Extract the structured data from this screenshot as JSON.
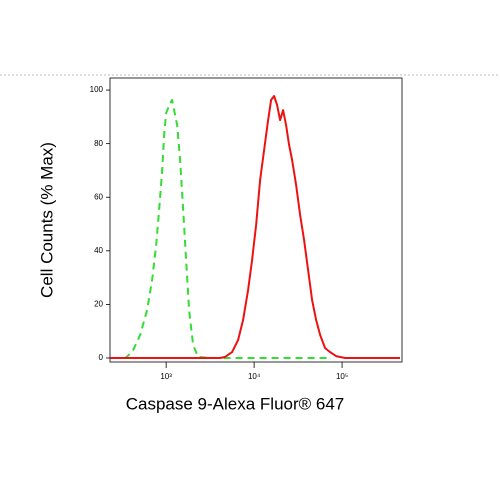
{
  "chart_data": {
    "type": "line",
    "xlabel": "Caspase 9-Alexa Fluor® 647",
    "ylabel": "Cell Counts (% Max)",
    "xscale": "log",
    "xlim": [
      230,
      480000
    ],
    "ylim": [
      -1.5,
      104.5
    ],
    "xticks": [
      {
        "value": 1000,
        "label": "10³"
      },
      {
        "value": 10000,
        "label": "10⁴"
      },
      {
        "value": 100000,
        "label": "10⁵"
      }
    ],
    "yticks": [
      0,
      20,
      40,
      60,
      80,
      100
    ],
    "series": [
      {
        "color": "#33dd33",
        "dash": true,
        "x": [
          243,
          342,
          411,
          507,
          608,
          693,
          770,
          832,
          901,
          949,
          1000,
          1054,
          1110,
          1170,
          1233,
          1334,
          1442,
          1561,
          1687,
          1824,
          2026,
          2310,
          3162,
          73100
        ],
        "values": [
          0,
          0,
          2.2,
          8.6,
          17.9,
          29.1,
          42.2,
          55.2,
          70.1,
          83.2,
          91.4,
          93.3,
          95.1,
          96.3,
          92.5,
          86.9,
          73.9,
          55.2,
          36.6,
          17.9,
          4.9,
          0.4,
          0,
          0
        ]
      },
      {
        "color": "#ee1111",
        "dash": false,
        "x": [
          231,
          4108,
          4677,
          5623,
          6579,
          7499,
          8547,
          9489,
          10540,
          11700,
          13000,
          14420,
          15610,
          16870,
          18240,
          19730,
          21380,
          23110,
          25000,
          27040,
          30000,
          33340,
          36980,
          41070,
          45600,
          50700,
          56230,
          64100,
          73100,
          85500,
          108200,
          456000
        ],
        "values": [
          0,
          0,
          0.4,
          2.2,
          6.7,
          14.2,
          25.4,
          36.6,
          49.6,
          66.4,
          77.6,
          88.8,
          96.3,
          97.8,
          94.4,
          88.8,
          92.5,
          86.9,
          79.5,
          73.9,
          64.6,
          53.4,
          44.0,
          32.8,
          21.6,
          14.2,
          8.6,
          3.7,
          2.2,
          0.7,
          0,
          0
        ]
      }
    ]
  }
}
